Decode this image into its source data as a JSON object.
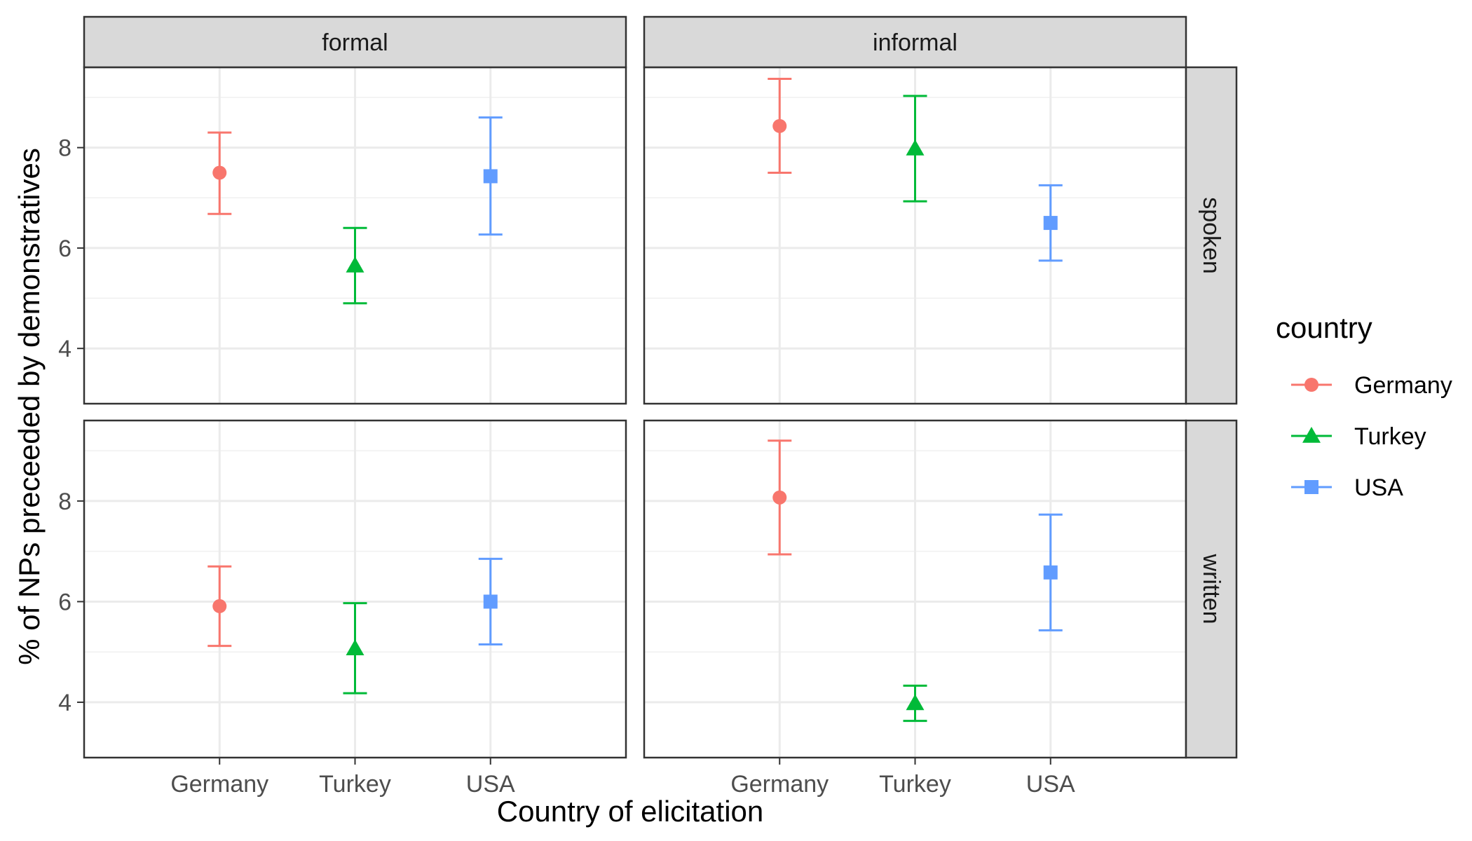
{
  "chart_data": {
    "type": "errorbar",
    "xlabel": "Country of elicitation",
    "ylabel": "% of NPs preceeded by demonstratives",
    "categories": [
      "Germany",
      "Turkey",
      "USA"
    ],
    "ylim": [
      2.9,
      9.6
    ],
    "yticks": [
      4,
      6,
      8
    ],
    "grid": true,
    "facet_columns": [
      "formal",
      "informal"
    ],
    "facet_rows": [
      "spoken",
      "written"
    ],
    "legend": {
      "title": "country",
      "position": "right",
      "entries": [
        {
          "label": "Germany",
          "color": "#F8766D",
          "shape": "circle"
        },
        {
          "label": "Turkey",
          "color": "#00BA38",
          "shape": "triangle"
        },
        {
          "label": "USA",
          "color": "#619CFF",
          "shape": "square"
        }
      ]
    },
    "panels": [
      {
        "column": "formal",
        "row": "spoken",
        "points": [
          {
            "x": "Germany",
            "y": 7.5,
            "ymin": 6.68,
            "ymax": 8.3
          },
          {
            "x": "Turkey",
            "y": 5.65,
            "ymin": 4.9,
            "ymax": 6.4
          },
          {
            "x": "USA",
            "y": 7.43,
            "ymin": 6.27,
            "ymax": 8.6
          }
        ]
      },
      {
        "column": "informal",
        "row": "spoken",
        "points": [
          {
            "x": "Germany",
            "y": 8.43,
            "ymin": 7.5,
            "ymax": 9.37
          },
          {
            "x": "Turkey",
            "y": 7.98,
            "ymin": 6.93,
            "ymax": 9.03
          },
          {
            "x": "USA",
            "y": 6.5,
            "ymin": 5.75,
            "ymax": 7.25
          }
        ]
      },
      {
        "column": "formal",
        "row": "written",
        "points": [
          {
            "x": "Germany",
            "y": 5.91,
            "ymin": 5.12,
            "ymax": 6.7
          },
          {
            "x": "Turkey",
            "y": 5.07,
            "ymin": 4.18,
            "ymax": 5.97
          },
          {
            "x": "USA",
            "y": 6.0,
            "ymin": 5.15,
            "ymax": 6.85
          }
        ]
      },
      {
        "column": "informal",
        "row": "written",
        "points": [
          {
            "x": "Germany",
            "y": 8.07,
            "ymin": 6.94,
            "ymax": 9.2
          },
          {
            "x": "Turkey",
            "y": 3.98,
            "ymin": 3.63,
            "ymax": 4.33
          },
          {
            "x": "USA",
            "y": 6.58,
            "ymin": 5.43,
            "ymax": 7.73
          }
        ]
      }
    ]
  }
}
